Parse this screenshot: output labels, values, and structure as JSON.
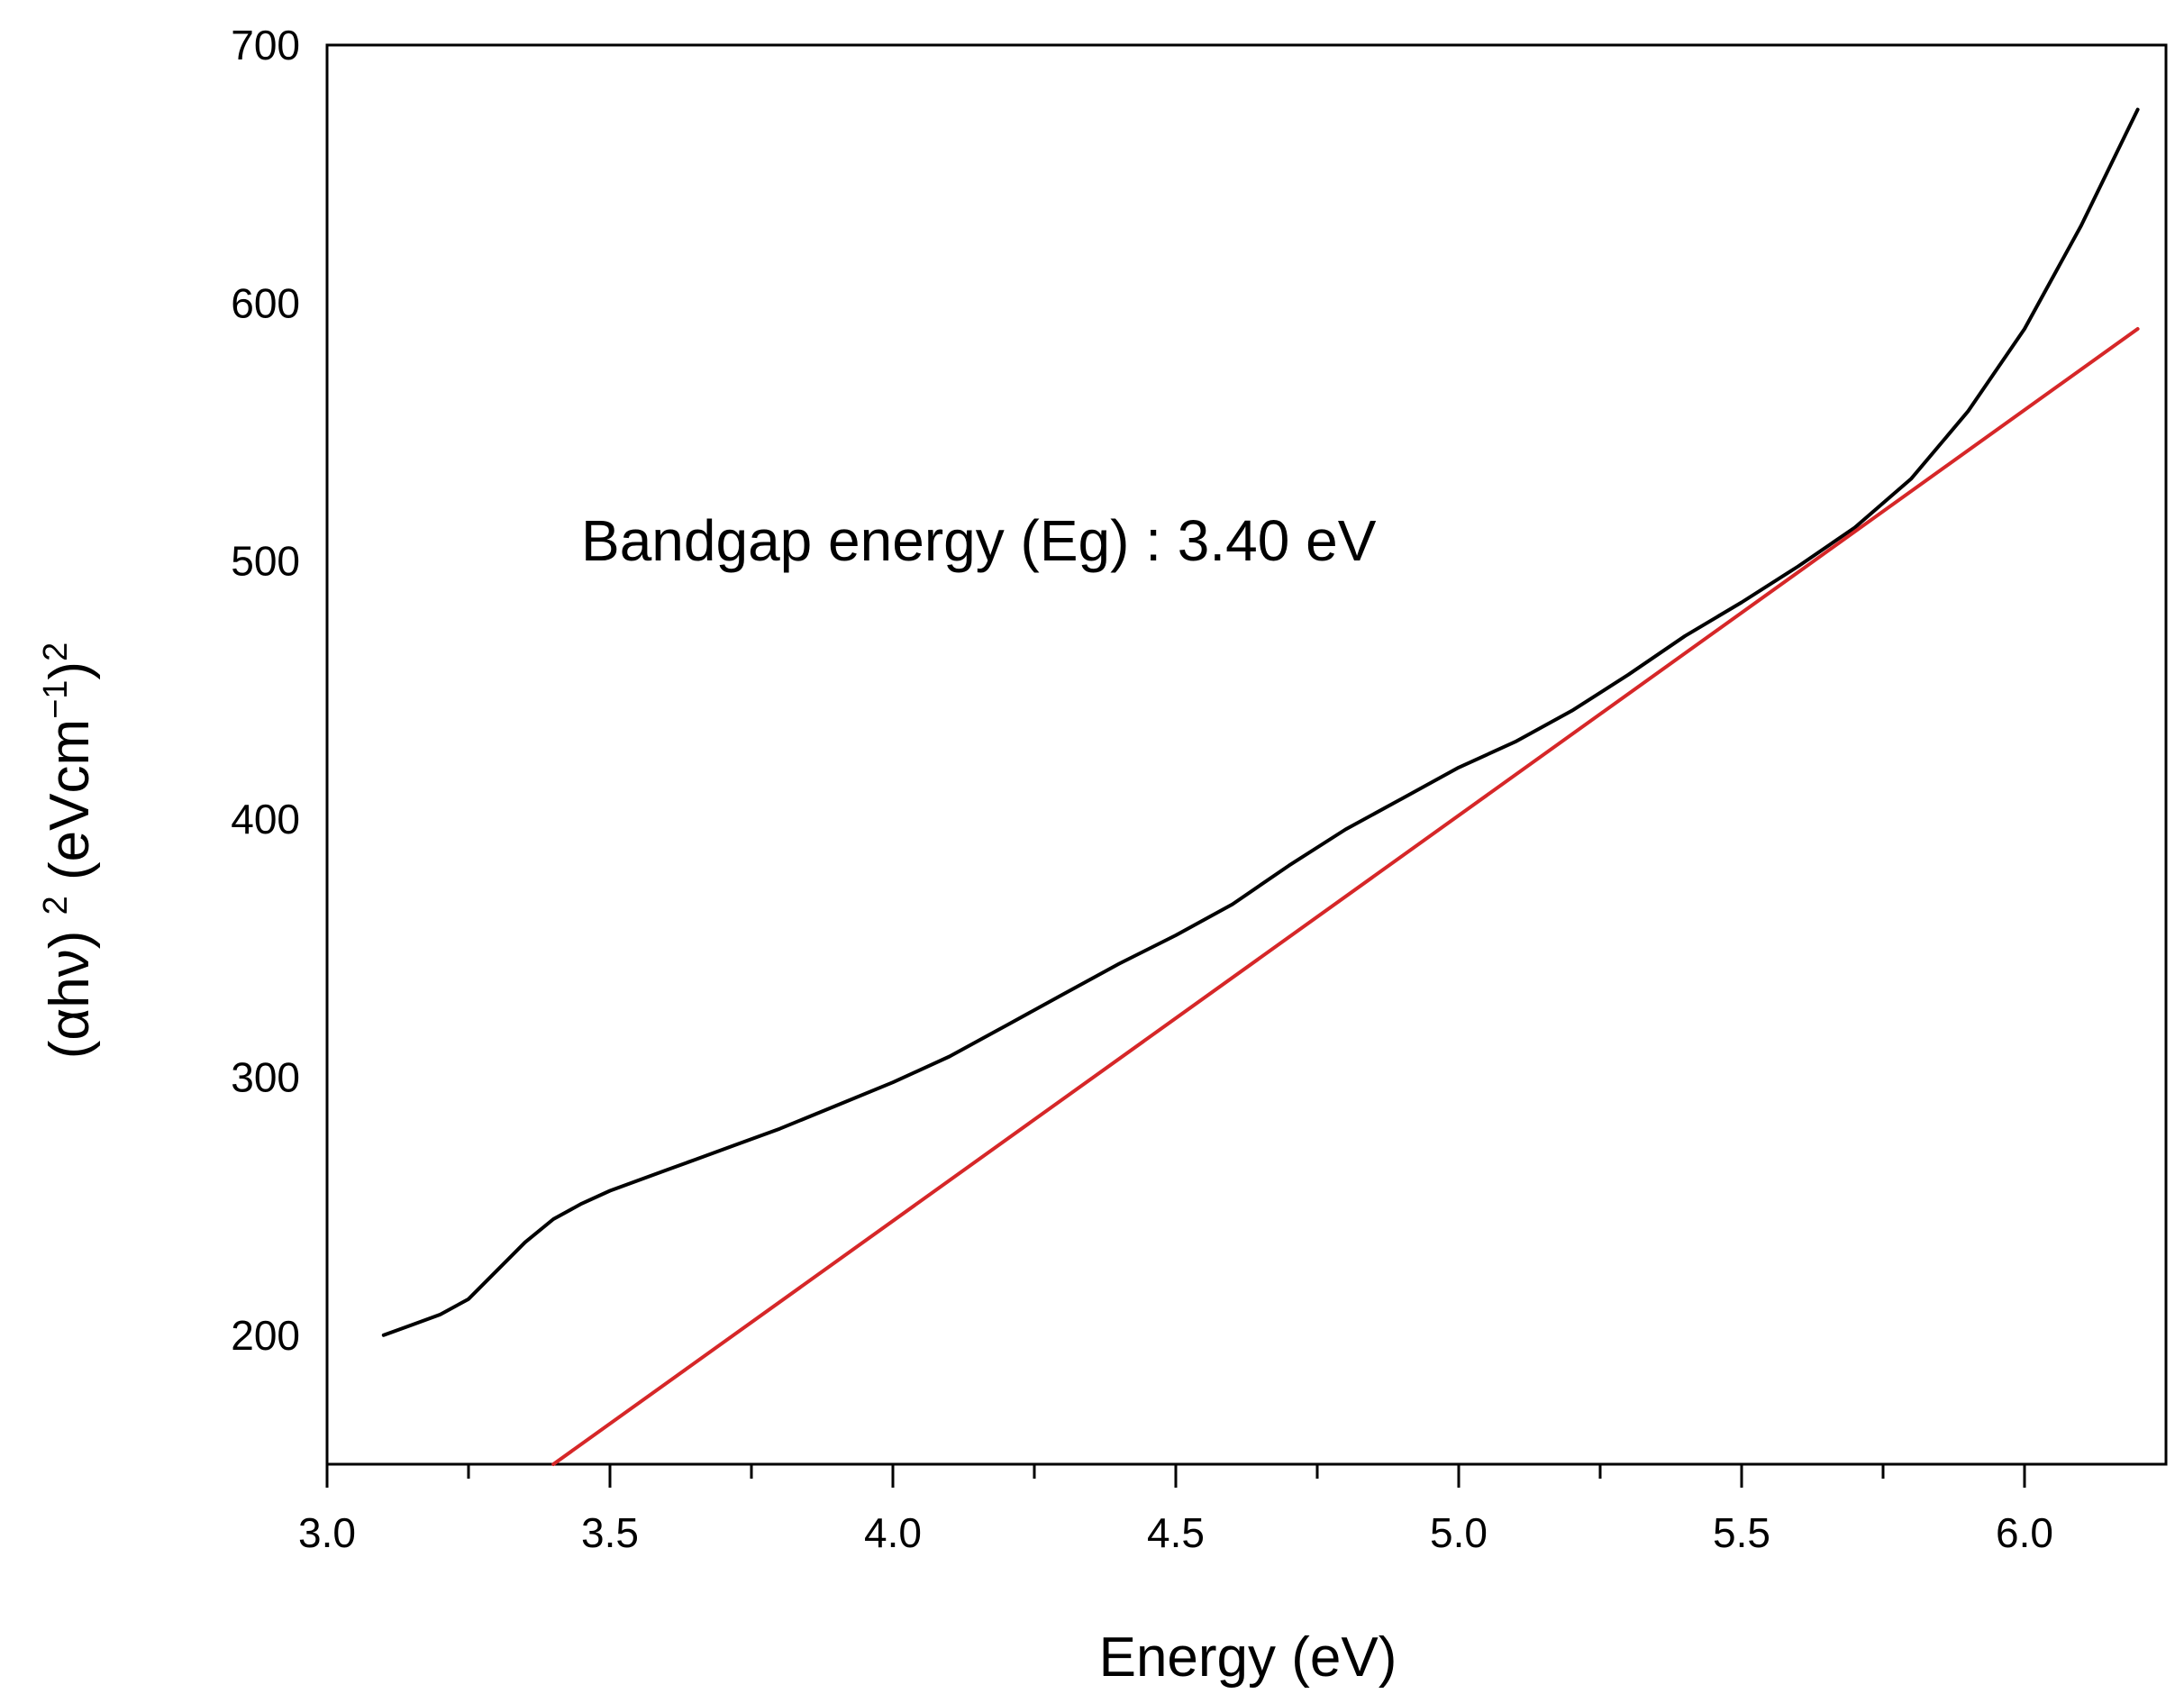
{
  "chart_data": {
    "type": "line",
    "title": "",
    "xlabel": "Energy (eV)",
    "ylabel": "(αhν) 2 (eVcm−1)2",
    "xlim": [
      3.0,
      6.25
    ],
    "ylim": [
      150,
      700
    ],
    "xticks": [
      3.0,
      3.5,
      4.0,
      4.5,
      5.0,
      5.5,
      6.0
    ],
    "xtick_labels": [
      "3.0",
      "3.5",
      "4.0",
      "4.5",
      "5.0",
      "5.5",
      "6.0"
    ],
    "x_minor_ticks": [
      3.25,
      3.75,
      4.25,
      4.75,
      5.25,
      5.75
    ],
    "yticks": [
      200,
      300,
      400,
      500,
      600,
      700
    ],
    "ytick_labels": [
      "200",
      "300",
      "400",
      "500",
      "600",
      "700"
    ],
    "grid": false,
    "annotation": "Bandgap energy (Eg) : 3.40 eV",
    "series": [
      {
        "color": "#000000",
        "points": [
          [
            3.1,
            200
          ],
          [
            3.15,
            204
          ],
          [
            3.2,
            208
          ],
          [
            3.25,
            214
          ],
          [
            3.3,
            225
          ],
          [
            3.35,
            236
          ],
          [
            3.4,
            245
          ],
          [
            3.45,
            251
          ],
          [
            3.5,
            256
          ],
          [
            3.55,
            260
          ],
          [
            3.6,
            264
          ],
          [
            3.65,
            268
          ],
          [
            3.7,
            272
          ],
          [
            3.8,
            280
          ],
          [
            3.9,
            289
          ],
          [
            4.0,
            298
          ],
          [
            4.1,
            308
          ],
          [
            4.2,
            320
          ],
          [
            4.3,
            332
          ],
          [
            4.4,
            344
          ],
          [
            4.5,
            355
          ],
          [
            4.6,
            367
          ],
          [
            4.7,
            382
          ],
          [
            4.8,
            396
          ],
          [
            4.9,
            408
          ],
          [
            5.0,
            420
          ],
          [
            5.1,
            430
          ],
          [
            5.2,
            442
          ],
          [
            5.3,
            456
          ],
          [
            5.4,
            471
          ],
          [
            5.5,
            484
          ],
          [
            5.6,
            498
          ],
          [
            5.7,
            513
          ],
          [
            5.8,
            532
          ],
          [
            5.9,
            558
          ],
          [
            6.0,
            590
          ],
          [
            6.1,
            630
          ],
          [
            6.2,
            675
          ]
        ]
      },
      {
        "color": "#d62728",
        "points": [
          [
            3.4,
            150
          ],
          [
            6.2,
            590
          ]
        ]
      }
    ]
  }
}
